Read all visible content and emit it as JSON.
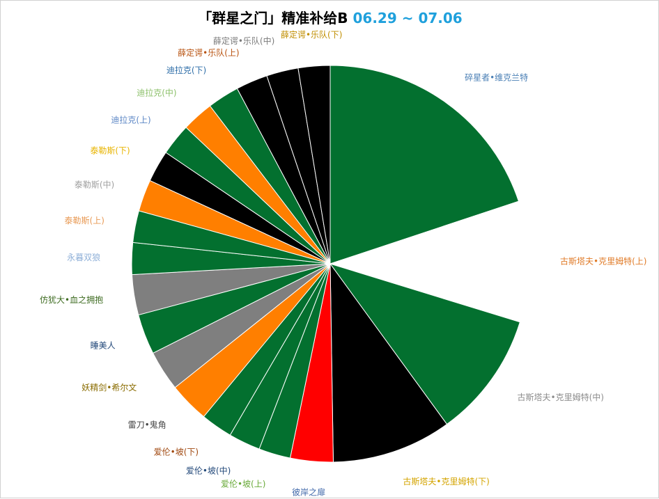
{
  "title": {
    "main": "「群星之门」精准补给B",
    "dates": "06.29 ~ 07.06"
  },
  "chart_data": {
    "type": "pie",
    "title": "「群星之门」精准补给B 06.29 ~ 07.06",
    "start": "12 o'clock",
    "direction": "clockwise",
    "slices": [
      {
        "label": "碎星者•维克兰特",
        "value": 20.0,
        "color": "#03702f",
        "label_color": "#4a7fb5"
      },
      {
        "label": "古斯塔夫•克里姆特(上)",
        "value": 9.9,
        "color": "#ffffff",
        "label_color": "#e07b28"
      },
      {
        "label": "古斯塔夫•克里姆特(中)",
        "value": 10.3,
        "color": "#03702f",
        "label_color": "#8c8c8c"
      },
      {
        "label": "古斯塔夫•克里姆特(下)",
        "value": 9.8,
        "color": "#000000",
        "label_color": "#d4a400"
      },
      {
        "label": "彼岸之扉",
        "value": 3.5,
        "color": "#ff0000",
        "label_color": "#3d66a8"
      },
      {
        "label": "爱伦•坡(上)",
        "value": 2.6,
        "color": "#03702f",
        "label_color": "#6aaa3a"
      },
      {
        "label": "爱伦•坡(中)",
        "value": 2.6,
        "color": "#03702f",
        "label_color": "#23497a"
      },
      {
        "label": "爱伦•坡(下)",
        "value": 2.6,
        "color": "#03702f",
        "label_color": "#a0480f"
      },
      {
        "label": "雷刀•鬼角",
        "value": 3.3,
        "color": "#ff7f00",
        "label_color": "#444444"
      },
      {
        "label": "妖精剑•希尔文",
        "value": 3.3,
        "color": "#7f7f7f",
        "label_color": "#8a6c00"
      },
      {
        "label": "睡美人",
        "value": 3.3,
        "color": "#03702f",
        "label_color": "#23497a"
      },
      {
        "label": "仿犹大•血之拥抱",
        "value": 3.3,
        "color": "#7f7f7f",
        "label_color": "#3d6b20"
      },
      {
        "label": "永暮双狼",
        "value": 2.6,
        "color": "#03702f",
        "label_color": "#8fb0d8"
      },
      {
        "label": "泰勒斯(上)",
        "value": 2.6,
        "color": "#03702f",
        "label_color": "#e89a55"
      },
      {
        "label": "泰勒斯(中)",
        "value": 2.6,
        "color": "#ff7f00",
        "label_color": "#a0a0a0"
      },
      {
        "label": "泰勒斯(下)",
        "value": 2.6,
        "color": "#000000",
        "label_color": "#e8b400"
      },
      {
        "label": "迪拉克(上)",
        "value": 2.6,
        "color": "#03702f",
        "label_color": "#5b86c5"
      },
      {
        "label": "迪拉克(中)",
        "value": 2.6,
        "color": "#ff7f00",
        "label_color": "#8cc06a"
      },
      {
        "label": "迪拉克(下)",
        "value": 2.6,
        "color": "#03702f",
        "label_color": "#2e6ea8"
      },
      {
        "label": "薛定谔•乐队(上)",
        "value": 2.6,
        "color": "#000000",
        "label_color": "#b8520f"
      },
      {
        "label": "薛定谔•乐队(中)",
        "value": 2.6,
        "color": "#000000",
        "label_color": "#7a7a7a"
      },
      {
        "label": "薛定谔•乐队(下)",
        "value": 2.6,
        "color": "#000000",
        "label_color": "#c08e00"
      }
    ]
  }
}
